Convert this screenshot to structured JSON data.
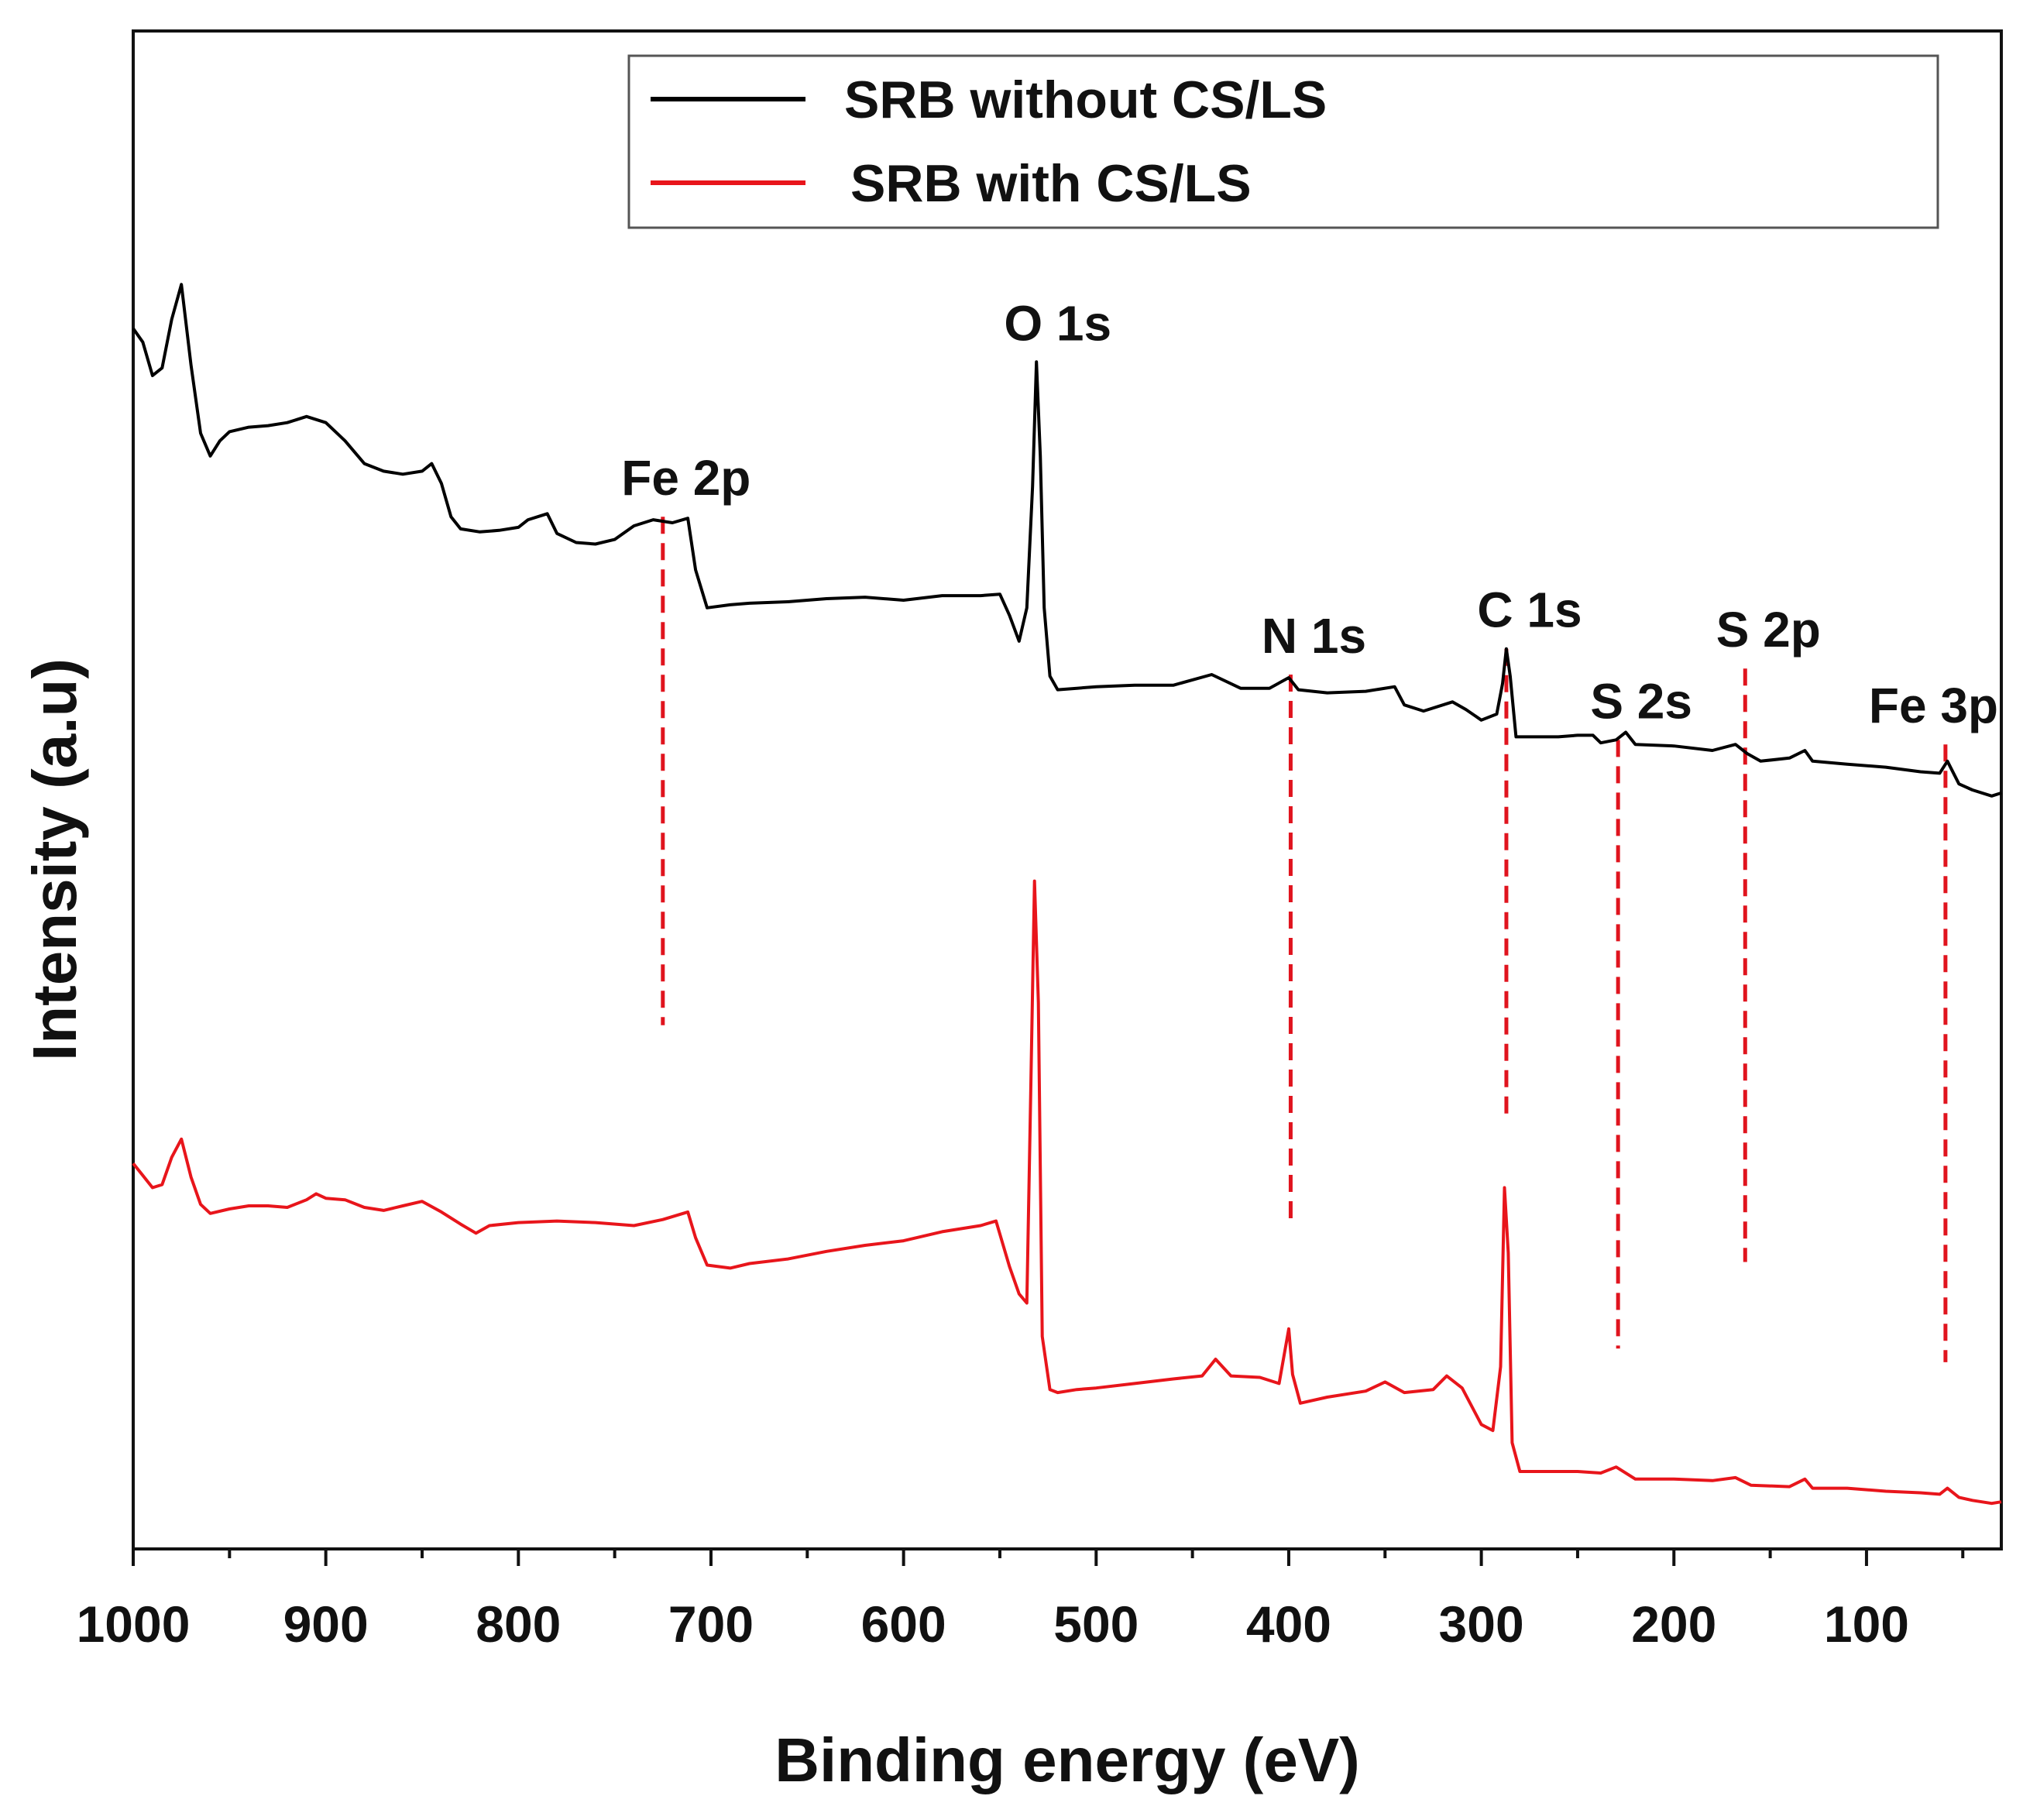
{
  "chart_data": {
    "type": "line",
    "title": "",
    "xlabel": "Binding energy (eV)",
    "ylabel": "Intensity (a.u)",
    "xlim": [
      1000,
      30
    ],
    "ylim": [
      0,
      100
    ],
    "x_ticks": [
      {
        "value": 1000,
        "label": "1000"
      },
      {
        "value": 900,
        "label": "900"
      },
      {
        "value": 800,
        "label": "800"
      },
      {
        "value": 700,
        "label": "700"
      },
      {
        "value": 600,
        "label": "600"
      },
      {
        "value": 500,
        "label": "500"
      },
      {
        "value": 400,
        "label": "400"
      },
      {
        "value": 300,
        "label": "300"
      },
      {
        "value": 200,
        "label": "200"
      },
      {
        "value": 100,
        "label": "100"
      }
    ],
    "legend": {
      "placement": "top-right",
      "entries": [
        {
          "label": "SRB without CS/LS",
          "color": "#000000"
        },
        {
          "label": "SRB with CS/LS",
          "color": "#e8151b"
        }
      ]
    },
    "series": [
      {
        "name": "SRB without CS/LS",
        "color": "#000000",
        "points": [
          [
            1000,
            80.4
          ],
          [
            995,
            79.5
          ],
          [
            990,
            77.3
          ],
          [
            985,
            77.8
          ],
          [
            980,
            81.0
          ],
          [
            975,
            83.3
          ],
          [
            970,
            78.0
          ],
          [
            965,
            73.5
          ],
          [
            960,
            72.0
          ],
          [
            955,
            73.0
          ],
          [
            950,
            73.6
          ],
          [
            940,
            73.9
          ],
          [
            930,
            74.0
          ],
          [
            920,
            74.2
          ],
          [
            910,
            74.6
          ],
          [
            900,
            74.2
          ],
          [
            890,
            73.0
          ],
          [
            880,
            71.5
          ],
          [
            870,
            71.0
          ],
          [
            860,
            70.8
          ],
          [
            850,
            71.0
          ],
          [
            845,
            71.5
          ],
          [
            840,
            70.2
          ],
          [
            835,
            68.0
          ],
          [
            830,
            67.2
          ],
          [
            820,
            67.0
          ],
          [
            810,
            67.1
          ],
          [
            800,
            67.3
          ],
          [
            795,
            67.8
          ],
          [
            785,
            68.2
          ],
          [
            780,
            66.9
          ],
          [
            770,
            66.3
          ],
          [
            760,
            66.2
          ],
          [
            750,
            66.5
          ],
          [
            740,
            67.4
          ],
          [
            730,
            67.8
          ],
          [
            720,
            67.6
          ],
          [
            712,
            67.9
          ],
          [
            708,
            64.5
          ],
          [
            702,
            62.0
          ],
          [
            690,
            62.2
          ],
          [
            680,
            62.3
          ],
          [
            660,
            62.4
          ],
          [
            640,
            62.6
          ],
          [
            620,
            62.7
          ],
          [
            600,
            62.5
          ],
          [
            580,
            62.8
          ],
          [
            560,
            62.8
          ],
          [
            550,
            62.9
          ],
          [
            545,
            61.5
          ],
          [
            540,
            59.8
          ],
          [
            536,
            62.0
          ],
          [
            533,
            70.0
          ],
          [
            531,
            78.2
          ],
          [
            529,
            72.0
          ],
          [
            527,
            62.0
          ],
          [
            524,
            57.5
          ],
          [
            520,
            56.6
          ],
          [
            510,
            56.7
          ],
          [
            500,
            56.8
          ],
          [
            480,
            56.9
          ],
          [
            460,
            56.9
          ],
          [
            440,
            57.6
          ],
          [
            425,
            56.7
          ],
          [
            410,
            56.7
          ],
          [
            400,
            57.4
          ],
          [
            395,
            56.6
          ],
          [
            380,
            56.4
          ],
          [
            360,
            56.5
          ],
          [
            345,
            56.8
          ],
          [
            340,
            55.6
          ],
          [
            330,
            55.2
          ],
          [
            315,
            55.8
          ],
          [
            308,
            55.3
          ],
          [
            300,
            54.6
          ],
          [
            292,
            55.0
          ],
          [
            289,
            57.0
          ],
          [
            287,
            59.3
          ],
          [
            285,
            57.5
          ],
          [
            282,
            53.5
          ],
          [
            275,
            53.5
          ],
          [
            260,
            53.5
          ],
          [
            250,
            53.6
          ],
          [
            242,
            53.6
          ],
          [
            238,
            53.1
          ],
          [
            230,
            53.3
          ],
          [
            225,
            53.8
          ],
          [
            220,
            53.0
          ],
          [
            200,
            52.9
          ],
          [
            180,
            52.6
          ],
          [
            168,
            53.0
          ],
          [
            162,
            52.4
          ],
          [
            155,
            51.9
          ],
          [
            140,
            52.1
          ],
          [
            132,
            52.6
          ],
          [
            128,
            51.9
          ],
          [
            110,
            51.7
          ],
          [
            90,
            51.5
          ],
          [
            72,
            51.2
          ],
          [
            62,
            51.1
          ],
          [
            58,
            51.9
          ],
          [
            52,
            50.4
          ],
          [
            45,
            50.0
          ],
          [
            35,
            49.6
          ],
          [
            30,
            49.8
          ]
        ]
      },
      {
        "name": "SRB with CS/LS",
        "color": "#e8151b",
        "points": [
          [
            1000,
            25.4
          ],
          [
            995,
            24.6
          ],
          [
            990,
            23.8
          ],
          [
            985,
            24.0
          ],
          [
            980,
            25.8
          ],
          [
            975,
            27.0
          ],
          [
            970,
            24.5
          ],
          [
            965,
            22.7
          ],
          [
            960,
            22.1
          ],
          [
            950,
            22.4
          ],
          [
            940,
            22.6
          ],
          [
            930,
            22.6
          ],
          [
            920,
            22.5
          ],
          [
            910,
            23.0
          ],
          [
            905,
            23.4
          ],
          [
            900,
            23.1
          ],
          [
            890,
            23.0
          ],
          [
            880,
            22.5
          ],
          [
            870,
            22.3
          ],
          [
            860,
            22.6
          ],
          [
            850,
            22.9
          ],
          [
            840,
            22.2
          ],
          [
            830,
            21.4
          ],
          [
            822,
            20.8
          ],
          [
            815,
            21.3
          ],
          [
            800,
            21.5
          ],
          [
            780,
            21.6
          ],
          [
            760,
            21.5
          ],
          [
            740,
            21.3
          ],
          [
            725,
            21.7
          ],
          [
            712,
            22.2
          ],
          [
            708,
            20.5
          ],
          [
            702,
            18.7
          ],
          [
            690,
            18.5
          ],
          [
            680,
            18.8
          ],
          [
            660,
            19.1
          ],
          [
            640,
            19.6
          ],
          [
            620,
            20.0
          ],
          [
            600,
            20.3
          ],
          [
            580,
            20.9
          ],
          [
            560,
            21.3
          ],
          [
            552,
            21.6
          ],
          [
            545,
            18.6
          ],
          [
            540,
            16.8
          ],
          [
            536,
            16.2
          ],
          [
            534,
            30.0
          ],
          [
            532,
            44.0
          ],
          [
            530,
            36.0
          ],
          [
            528,
            14.0
          ],
          [
            524,
            10.5
          ],
          [
            520,
            10.3
          ],
          [
            510,
            10.5
          ],
          [
            500,
            10.6
          ],
          [
            480,
            10.9
          ],
          [
            460,
            11.2
          ],
          [
            445,
            11.4
          ],
          [
            438,
            12.5
          ],
          [
            430,
            11.4
          ],
          [
            415,
            11.3
          ],
          [
            405,
            10.9
          ],
          [
            400,
            14.5
          ],
          [
            398,
            11.5
          ],
          [
            394,
            9.6
          ],
          [
            380,
            10.0
          ],
          [
            360,
            10.4
          ],
          [
            350,
            11.0
          ],
          [
            340,
            10.3
          ],
          [
            325,
            10.5
          ],
          [
            318,
            11.4
          ],
          [
            310,
            10.6
          ],
          [
            300,
            8.2
          ],
          [
            294,
            7.8
          ],
          [
            290,
            12.0
          ],
          [
            288,
            23.8
          ],
          [
            286,
            19.5
          ],
          [
            284,
            7.0
          ],
          [
            280,
            5.1
          ],
          [
            270,
            5.1
          ],
          [
            250,
            5.1
          ],
          [
            238,
            5.0
          ],
          [
            230,
            5.4
          ],
          [
            220,
            4.6
          ],
          [
            200,
            4.6
          ],
          [
            180,
            4.5
          ],
          [
            168,
            4.7
          ],
          [
            160,
            4.2
          ],
          [
            140,
            4.1
          ],
          [
            132,
            4.6
          ],
          [
            128,
            4.0
          ],
          [
            110,
            4.0
          ],
          [
            90,
            3.8
          ],
          [
            72,
            3.7
          ],
          [
            62,
            3.6
          ],
          [
            58,
            4.0
          ],
          [
            52,
            3.4
          ],
          [
            45,
            3.2
          ],
          [
            35,
            3.0
          ],
          [
            30,
            3.1
          ]
        ]
      }
    ],
    "peaks": [
      {
        "label": "Fe 2p",
        "x": 725,
        "y_top": 68.0,
        "y_bottom": 34.5,
        "dashed": true
      },
      {
        "label": "O 1s",
        "x": 532,
        "y_top": 78.2,
        "dashed": false
      },
      {
        "label": "N 1s",
        "x": 399,
        "y_top": 57.6,
        "y_bottom": 21.3,
        "dashed": true
      },
      {
        "label": "C 1s",
        "x": 287,
        "y_top": 59.3,
        "y_bottom": 28.6,
        "dashed": true
      },
      {
        "label": "S 2s",
        "x": 229,
        "y_top": 53.3,
        "y_bottom": 13.2,
        "dashed": true
      },
      {
        "label": "S 2p",
        "x": 163,
        "y_top": 58.0,
        "y_bottom": 18.9,
        "dashed": true
      },
      {
        "label": "Fe 3p",
        "x": 59,
        "y_top": 53.0,
        "y_bottom": 12.3,
        "dashed": true
      }
    ]
  }
}
